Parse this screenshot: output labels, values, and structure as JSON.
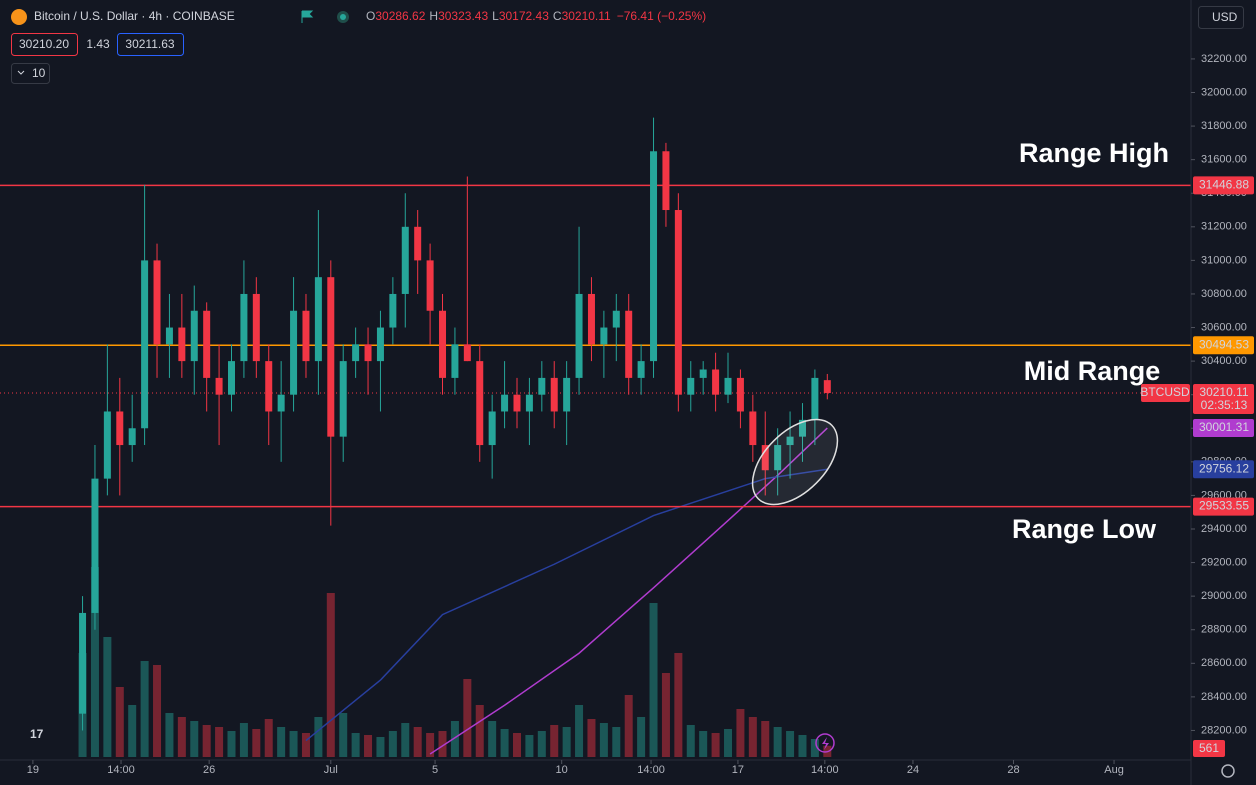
{
  "chart_data": {
    "type": "candlestick",
    "title": "Bitcoin / U.S. Dollar · 4h · COINBASE",
    "ohlc_letters": [
      "O",
      "H",
      "L",
      "C"
    ],
    "change": "−76.41 (−0.25%)",
    "bid": "30210.20",
    "spread": "1.43",
    "ask": "30211.63",
    "indicator_count": 10,
    "currency": "USD",
    "symbol": "BTCUSD",
    "countdown": "02:35:13",
    "annotations": [
      "Range High",
      "Mid Range",
      "Range Low"
    ],
    "levels": [
      {
        "value": 31446.88,
        "color": "#f23645"
      },
      {
        "value": 30494.53,
        "color": "#ff9800"
      },
      {
        "value": 29533.55,
        "color": "#f23645"
      }
    ],
    "x": [
      6,
      7,
      8,
      9,
      10,
      11,
      12,
      13,
      14,
      15,
      16,
      17,
      18,
      19,
      20,
      21,
      22,
      23,
      24,
      25,
      26,
      27,
      28,
      29,
      30,
      31,
      32,
      33,
      34,
      35,
      36,
      37,
      38,
      39,
      40,
      41,
      42,
      43,
      44,
      45,
      46,
      47,
      48,
      49,
      50,
      51,
      52,
      53,
      54,
      55,
      56,
      57,
      58,
      59,
      60,
      61,
      62,
      63,
      64,
      65,
      66
    ],
    "open": [
      28300,
      28900,
      29700,
      30100,
      29900,
      30000,
      31000,
      30500,
      30600,
      30400,
      30700,
      30300,
      30200,
      30400,
      30800,
      30400,
      30100,
      30200,
      30700,
      30400,
      30900,
      29950,
      30400,
      30500,
      30400,
      30600,
      30800,
      31200,
      31000,
      30700,
      30300,
      30500,
      30400,
      29900,
      30100,
      30200,
      30100,
      30200,
      30300,
      30100,
      30300,
      30800,
      30500,
      30600,
      30700,
      30300,
      30400,
      31650,
      31300,
      30200,
      30300,
      30350,
      30200,
      30300,
      30100,
      29900,
      29750,
      29900,
      29950,
      30050,
      30286.62
    ],
    "high": [
      29000,
      29900,
      30500,
      30300,
      30200,
      31450,
      31100,
      30800,
      30800,
      30850,
      30750,
      30500,
      30500,
      31000,
      30900,
      30500,
      30400,
      30900,
      30800,
      31300,
      31000,
      30500,
      30600,
      30600,
      30700,
      30900,
      31400,
      31300,
      31100,
      30800,
      30600,
      31500,
      30500,
      30200,
      30400,
      30300,
      30300,
      30400,
      30400,
      30400,
      31200,
      30900,
      30700,
      30800,
      30800,
      30500,
      31850,
      31700,
      31400,
      30400,
      30400,
      30450,
      30450,
      30350,
      30200,
      30100,
      30000,
      30100,
      30150,
      30350,
      30323.43
    ],
    "low": [
      28200,
      28800,
      29600,
      29600,
      29800,
      29900,
      30300,
      30300,
      30300,
      30200,
      30100,
      29900,
      30100,
      30300,
      30300,
      29900,
      29800,
      30100,
      30300,
      30200,
      29420,
      29800,
      30300,
      30200,
      30100,
      30500,
      30600,
      30800,
      30500,
      30200,
      30200,
      30400,
      29800,
      29700,
      30000,
      30000,
      29900,
      30100,
      30000,
      29900,
      30200,
      30400,
      30300,
      30400,
      30200,
      30200,
      30300,
      31200,
      30100,
      30100,
      30200,
      30100,
      30150,
      30000,
      29800,
      29600,
      29600,
      29700,
      29800,
      29900,
      30172.43
    ],
    "close": [
      28900,
      29700,
      30100,
      29900,
      30000,
      31000,
      30500,
      30600,
      30400,
      30700,
      30300,
      30200,
      30400,
      30800,
      30400,
      30100,
      30200,
      30700,
      30400,
      30900,
      29950,
      30400,
      30500,
      30400,
      30600,
      30800,
      31200,
      31000,
      30700,
      30300,
      30500,
      30400,
      29900,
      30100,
      30200,
      30100,
      30200,
      30300,
      30100,
      30300,
      30800,
      30500,
      30600,
      30700,
      30300,
      30400,
      31650,
      31300,
      30200,
      30300,
      30350,
      30200,
      30300,
      30100,
      29900,
      29750,
      29900,
      29950,
      30050,
      30300,
      30210.11
    ],
    "volume": [
      5200,
      9500,
      6000,
      3500,
      2600,
      4800,
      4600,
      2200,
      2000,
      1800,
      1600,
      1500,
      1300,
      1700,
      1400,
      1900,
      1500,
      1300,
      1200,
      2000,
      8200,
      2200,
      1200,
      1100,
      1000,
      1300,
      1700,
      1500,
      1200,
      1300,
      1800,
      3900,
      2600,
      1800,
      1400,
      1200,
      1100,
      1300,
      1600,
      1500,
      2600,
      1900,
      1700,
      1500,
      3100,
      2000,
      7700,
      4200,
      5200,
      1600,
      1300,
      1200,
      1400,
      2400,
      2000,
      1800,
      1500,
      1300,
      1100,
      900,
      561
    ],
    "volume_lim": [
      0,
      10000
    ],
    "up_color": "#26a69a",
    "down_color": "#f23645",
    "series": [
      {
        "color": "#b03ccf",
        "x": [
          34,
          40,
          46,
          52,
          58,
          62,
          66
        ],
        "values": [
          28060,
          28350,
          28660,
          29050,
          29450,
          29720,
          30001.31
        ]
      },
      {
        "color": "#283f9e",
        "x": [
          24,
          30,
          35,
          44,
          52,
          61,
          66
        ],
        "values": [
          28140,
          28500,
          28890,
          29190,
          29480,
          29700,
          29756.12
        ]
      }
    ],
    "xlim": [
      -0.65,
      95.3
    ],
    "xticks": [
      {
        "value": 2,
        "label": "19"
      },
      {
        "value": 9.1,
        "label": "14:00"
      },
      {
        "value": 16.2,
        "label": "26"
      },
      {
        "value": 26,
        "label": "Jul"
      },
      {
        "value": 34.4,
        "label": "5"
      },
      {
        "value": 44.6,
        "label": "10"
      },
      {
        "value": 51.8,
        "label": "14:00"
      },
      {
        "value": 58.8,
        "label": "17"
      },
      {
        "value": 65.8,
        "label": "14:00"
      },
      {
        "value": 72.9,
        "label": "24"
      },
      {
        "value": 81,
        "label": "28"
      },
      {
        "value": 89.1,
        "label": "Aug"
      }
    ],
    "ylim": [
      28024,
      32551
    ],
    "yticks": [
      {
        "value": 28200,
        "label": "28200.00"
      },
      {
        "value": 28400,
        "label": "28400.00"
      },
      {
        "value": 28600,
        "label": "28600.00"
      },
      {
        "value": 28800,
        "label": "28800.00"
      },
      {
        "value": 29000,
        "label": "29000.00"
      },
      {
        "value": 29200,
        "label": "29200.00"
      },
      {
        "value": 29400,
        "label": "29400.00"
      },
      {
        "value": 29600,
        "label": "29600.00"
      },
      {
        "value": 29800,
        "label": "29800.00"
      },
      {
        "value": 30000,
        "label": "30000.00"
      },
      {
        "value": 30200,
        "label": "30200.00"
      },
      {
        "value": 30400,
        "label": "30400.00"
      },
      {
        "value": 30600,
        "label": "30600.00"
      },
      {
        "value": 30800,
        "label": "30800.00"
      },
      {
        "value": 31000,
        "label": "31000.00"
      },
      {
        "value": 31200,
        "label": "31200.00"
      },
      {
        "value": 31400,
        "label": "31400.00"
      },
      {
        "value": 31600,
        "label": "31600.00"
      },
      {
        "value": 31800,
        "label": "31800.00"
      },
      {
        "value": 32000,
        "label": "32000.00"
      },
      {
        "value": 32200,
        "label": "32200.00"
      }
    ],
    "grid": false
  }
}
